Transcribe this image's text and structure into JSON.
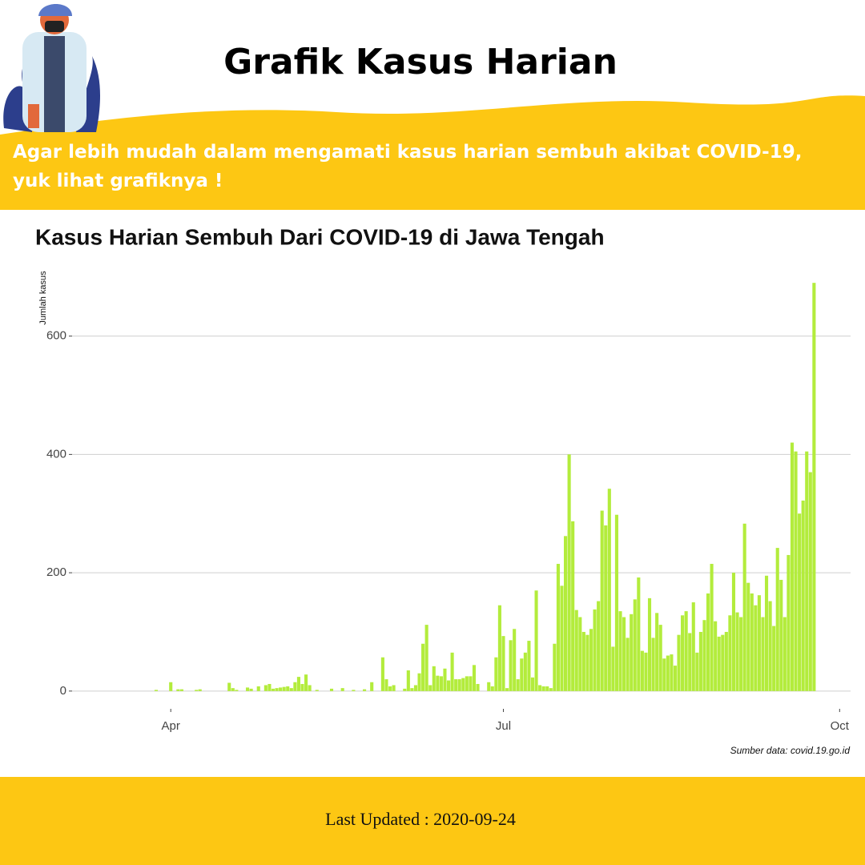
{
  "header": {
    "title": "Grafik Kasus Harian",
    "subtitle": "Agar lebih mudah dalam mengamati kasus harian sembuh akibat COVID-19, yuk lihat grafiknya !"
  },
  "footer": {
    "text": "Last Updated : 2020-09-24"
  },
  "chart_data": {
    "type": "bar",
    "title": "Kasus Harian Sembuh Dari COVID-19 di Jawa Tengah",
    "y_label": "Jumlah kasus",
    "caption": "Sumber data: covid.19.go.id",
    "color": "#b3ec3c",
    "grid": true,
    "xlim": [
      65,
      278
    ],
    "ylim": [
      -30,
      720
    ],
    "xticks": [
      {
        "value": 92,
        "label": "Apr"
      },
      {
        "value": 183,
        "label": "Jul"
      },
      {
        "value": 275,
        "label": "Oct"
      }
    ],
    "yticks": [
      0,
      200,
      400,
      600
    ],
    "x": [
      88,
      92,
      94,
      95,
      99,
      100,
      108,
      109,
      110,
      113,
      114,
      116,
      118,
      119,
      120,
      121,
      122,
      123,
      124,
      125,
      126,
      127,
      128,
      129,
      130,
      132,
      136,
      139,
      142,
      145,
      147,
      150,
      151,
      152,
      153,
      156,
      157,
      158,
      159,
      160,
      161,
      162,
      163,
      164,
      165,
      166,
      167,
      168,
      169,
      170,
      171,
      172,
      173,
      174,
      175,
      176,
      179,
      180,
      181,
      182,
      183,
      184,
      185,
      186,
      187,
      188,
      189,
      190,
      191,
      192,
      193,
      194,
      195,
      196,
      197,
      198,
      199,
      200,
      201,
      202,
      203,
      204,
      205,
      206,
      207,
      208,
      209,
      210,
      211,
      212,
      213,
      214,
      215,
      216,
      217,
      218,
      219,
      220,
      221,
      222,
      223,
      224,
      225,
      226,
      227,
      228,
      229,
      230,
      231,
      232,
      233,
      234,
      235,
      236,
      237,
      238,
      239,
      240,
      241,
      242,
      243,
      244,
      245,
      246,
      247,
      248,
      249,
      250,
      251,
      252,
      253,
      254,
      255,
      256,
      257,
      258,
      259,
      260,
      261,
      262,
      263,
      264,
      265,
      266,
      267,
      268
    ],
    "values": [
      2,
      15,
      3,
      3,
      2,
      3,
      14,
      5,
      2,
      6,
      4,
      8,
      10,
      12,
      4,
      5,
      6,
      7,
      8,
      5,
      15,
      24,
      12,
      28,
      10,
      2,
      4,
      5,
      2,
      3,
      15,
      57,
      20,
      8,
      10,
      4,
      35,
      5,
      10,
      30,
      80,
      112,
      10,
      42,
      26,
      25,
      38,
      18,
      65,
      20,
      20,
      22,
      25,
      25,
      44,
      12,
      15,
      8,
      57,
      145,
      93,
      5,
      86,
      105,
      20,
      55,
      65,
      85,
      23,
      170,
      10,
      8,
      8,
      5,
      80,
      215,
      178,
      262,
      400,
      287,
      137,
      125,
      100,
      95,
      105,
      138,
      152,
      305,
      280,
      342,
      75,
      298,
      135,
      125,
      90,
      130,
      155,
      192,
      68,
      65,
      157,
      90,
      132,
      112,
      55,
      60,
      62,
      43,
      95,
      128,
      135,
      98,
      150,
      65,
      100,
      120,
      165,
      215,
      118,
      92,
      95,
      100,
      128,
      200,
      133,
      125,
      283,
      183,
      165,
      145,
      162,
      125,
      195,
      152,
      110,
      242,
      188,
      125,
      230,
      420,
      405,
      300,
      322,
      405,
      370,
      690
    ]
  }
}
